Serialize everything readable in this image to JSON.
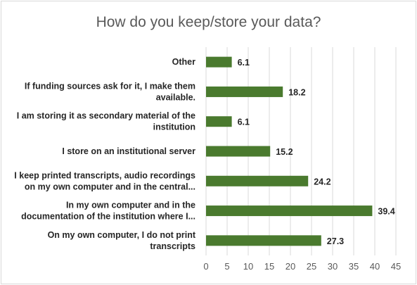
{
  "chart_data": {
    "type": "bar",
    "orientation": "horizontal",
    "title": "How do you keep/store your data?",
    "xlabel": "",
    "ylabel": "",
    "xlim": [
      0,
      45
    ],
    "xticks": [
      0,
      5,
      10,
      15,
      20,
      25,
      30,
      35,
      40,
      45
    ],
    "grid": true,
    "legend": "none",
    "bar_color": "#4a7a2e",
    "categories": [
      [
        "Other"
      ],
      [
        "If funding sources ask for it, I make them",
        "available."
      ],
      [
        "I am storing it as secondary material of the",
        "institution"
      ],
      [
        "I store on an institutional server"
      ],
      [
        "I keep printed transcripts, audio recordings",
        "on my own computer and in the central..."
      ],
      [
        "In my own computer and in the",
        "documentation of the institution where I..."
      ],
      [
        "On my own computer, I do not print",
        "transcripts"
      ]
    ],
    "values": [
      6.1,
      18.2,
      6.1,
      15.2,
      24.2,
      39.4,
      27.3
    ]
  }
}
